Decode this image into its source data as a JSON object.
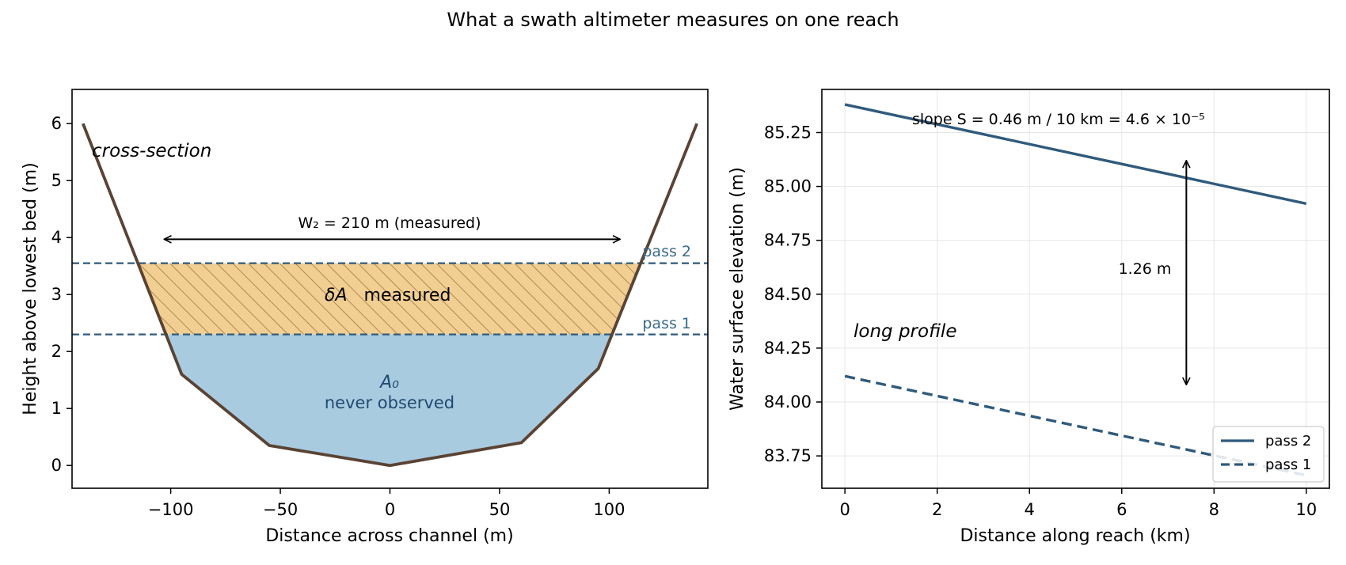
{
  "title": "What a swath altimeter measures on one reach",
  "colors": {
    "bank": "#5a4334",
    "water": "#a8cbe0",
    "delta_fill": "#f1cf92",
    "delta_hatch": "#9c7840",
    "pass_line": "#2f5a7c",
    "a0_text": "#1f4a70",
    "pass_label": "#3a6a8e"
  },
  "chart_data": [
    {
      "type": "area",
      "xlabel": "Distance across channel (m)",
      "ylabel": "Height above lowest bed (m)",
      "xlim": [
        -145,
        145
      ],
      "ylim": [
        -0.4,
        6.6
      ],
      "x_ticks": [
        -100,
        -50,
        0,
        50,
        100
      ],
      "x_tick_labels": [
        "−100",
        "−50",
        "0",
        "50",
        "100"
      ],
      "y_ticks": [
        0,
        1,
        2,
        3,
        4,
        5,
        6
      ],
      "y_tick_labels": [
        "0",
        "1",
        "2",
        "3",
        "4",
        "5",
        "6"
      ],
      "grid": false,
      "bed_profile": {
        "x": [
          -140,
          -95,
          -55,
          0,
          60,
          95,
          140
        ],
        "y": [
          6.0,
          1.6,
          0.35,
          0.0,
          0.4,
          1.7,
          6.0
        ]
      },
      "water_levels": [
        {
          "name": "pass 1",
          "y": 2.3
        },
        {
          "name": "pass 2",
          "y": 3.55
        }
      ],
      "annotations": {
        "panel_label": "cross-section",
        "width_label": "W₂ = 210 m  (measured)",
        "width_arrow_x": [
          -103,
          105
        ],
        "width_arrow_y": 3.97,
        "delta_label_symbol": "δA",
        "delta_label_text": "measured",
        "a0_symbol": "A₀",
        "a0_text": "never observed"
      }
    },
    {
      "type": "line",
      "xlabel": "Distance along reach (km)",
      "ylabel": "Water surface elevation (m)",
      "xlim": [
        -0.5,
        10.5
      ],
      "ylim": [
        83.6,
        85.45
      ],
      "x_ticks": [
        0,
        2,
        4,
        6,
        8,
        10
      ],
      "x_tick_labels": [
        "0",
        "2",
        "4",
        "6",
        "8",
        "10"
      ],
      "y_ticks": [
        83.75,
        84.0,
        84.25,
        84.5,
        84.75,
        85.0,
        85.25
      ],
      "y_tick_labels": [
        "83.75",
        "84.00",
        "84.25",
        "84.50",
        "84.75",
        "85.00",
        "85.25"
      ],
      "grid": true,
      "legend_position": "lower-right",
      "series": [
        {
          "name": "pass 2",
          "style": "solid",
          "x": [
            0,
            10
          ],
          "y": [
            85.38,
            84.92
          ]
        },
        {
          "name": "pass 1",
          "style": "dashed",
          "x": [
            0,
            10
          ],
          "y": [
            84.12,
            83.66
          ]
        }
      ],
      "annotations": {
        "panel_label": "long profile",
        "slope_label": "slope S = 0.46 m / 10 km = 4.6 × 10⁻⁵",
        "diff_label": "1.26 m",
        "diff_arrow_x": 7.4,
        "diff_arrow_y": [
          84.08,
          85.12
        ]
      }
    }
  ]
}
